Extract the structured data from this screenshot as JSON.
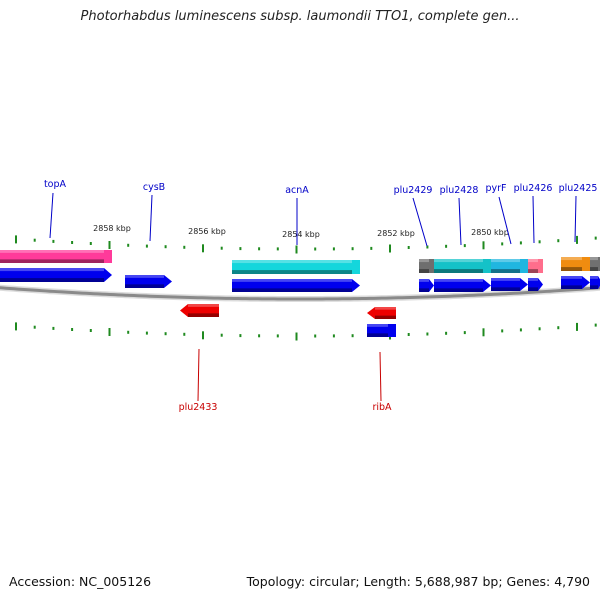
{
  "title": "Photorhabdus luminescens subsp. laumondii TTO1, complete gen...",
  "footer": {
    "accession": "Accession: NC_005126",
    "topology": "Topology: circular; Length: 5,688,987 bp; Genes: 4,790"
  },
  "colors": {
    "backbone": "#8a8a8a",
    "tick": "#1f8a1f",
    "forward_label": "#0000c8",
    "reverse_label": "#c80000",
    "cds_forward": "#0000ee",
    "cds_reverse": "#ee0000"
  },
  "scale_labels": [
    "2858 kbp",
    "2856 kbp",
    "2854 kbp",
    "2852 kbp",
    "2850 kbp"
  ],
  "features": [
    {
      "row": "outer",
      "color": "#ff3a9a"
    },
    {
      "row": "outer",
      "color": "#14d6dc"
    },
    {
      "row": "outer",
      "color": "#6e6e6e"
    },
    {
      "row": "outer",
      "color": "#14c2c8"
    },
    {
      "row": "outer",
      "color": "#20b6e0"
    },
    {
      "row": "outer",
      "color": "#ff6e8c"
    },
    {
      "row": "outer",
      "color": "#f08c10"
    },
    {
      "row": "outer",
      "color": "#707070"
    },
    {
      "row": "fwd",
      "color": "#0000ee"
    },
    {
      "row": "fwd",
      "color": "#0000ee"
    },
    {
      "row": "fwd",
      "color": "#0000ee"
    },
    {
      "row": "fwd",
      "color": "#0000ee"
    },
    {
      "row": "fwd",
      "color": "#0000ee"
    },
    {
      "row": "fwd",
      "color": "#0000ee"
    },
    {
      "row": "fwd",
      "color": "#0000ee"
    },
    {
      "row": "fwd",
      "color": "#0000ee"
    },
    {
      "row": "fwd",
      "color": "#0000ee"
    },
    {
      "row": "rev",
      "color": "#ee0000"
    },
    {
      "row": "rev",
      "color": "#ee0000"
    },
    {
      "row": "rev2",
      "color": "#0000ee"
    }
  ],
  "gene_labels": [
    {
      "name": "topA",
      "strand": "+"
    },
    {
      "name": "cysB",
      "strand": "+"
    },
    {
      "name": "acnA",
      "strand": "+"
    },
    {
      "name": "plu2429",
      "strand": "+"
    },
    {
      "name": "plu2428",
      "strand": "+"
    },
    {
      "name": "pyrF",
      "strand": "+"
    },
    {
      "name": "plu2426",
      "strand": "+"
    },
    {
      "name": "plu2425",
      "strand": "+"
    },
    {
      "name": "plu2433",
      "strand": "-"
    },
    {
      "name": "ribA",
      "strand": "-"
    }
  ]
}
